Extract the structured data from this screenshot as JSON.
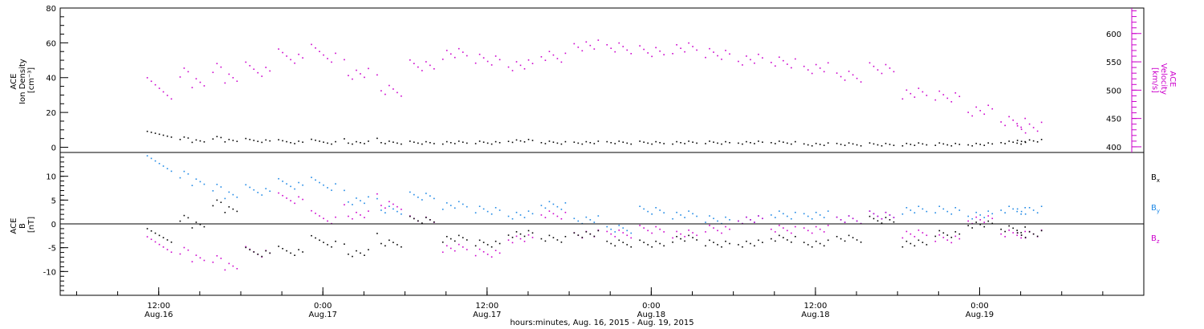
{
  "chart_data": [
    {
      "type": "scatter",
      "panel": "top",
      "ylabel_left": [
        "ACE",
        "Ion Density",
        "[cm⁻³]"
      ],
      "ylabel_right": [
        "ACE",
        "Velocity",
        "[km/s]"
      ],
      "ylim_left": [
        -3,
        80
      ],
      "ylim_right": [
        390,
        645
      ],
      "yticks_left": [
        "0",
        "20",
        "40",
        "60",
        "80"
      ],
      "yticks_right": [
        "400",
        "450",
        "500",
        "550",
        "600"
      ],
      "colors": {
        "density": "#000000",
        "velocity": "#cc00cc"
      },
      "series": [
        {
          "name": "Ion Density",
          "axis": "left",
          "color": "#000000",
          "x": [
            0.0,
            0.1,
            0.2,
            0.3,
            0.4,
            0.5,
            0.6,
            0.7,
            0.8,
            0.9,
            1.0,
            1.1,
            1.2,
            1.3,
            1.4,
            1.5,
            1.6,
            1.7,
            1.8,
            1.9,
            2.0,
            2.1,
            2.2,
            2.3,
            2.4,
            2.5,
            2.6,
            2.65
          ],
          "values": [
            7,
            4,
            4,
            4,
            3,
            3,
            3,
            3,
            3,
            3,
            3,
            4,
            3,
            3,
            3,
            3,
            3,
            3,
            3,
            3,
            2,
            2,
            2,
            2,
            2,
            2,
            3,
            4
          ]
        },
        {
          "name": "Velocity",
          "axis": "right",
          "color": "#cc00cc",
          "x": [
            0.0,
            0.1,
            0.2,
            0.3,
            0.4,
            0.5,
            0.6,
            0.7,
            0.8,
            0.9,
            1.0,
            1.1,
            1.2,
            1.3,
            1.4,
            1.5,
            1.6,
            1.7,
            1.8,
            1.9,
            2.0,
            2.1,
            2.2,
            2.3,
            2.4,
            2.5,
            2.6,
            2.65
          ],
          "values": [
            495,
            515,
            520,
            535,
            555,
            560,
            530,
            500,
            545,
            565,
            555,
            545,
            560,
            580,
            575,
            570,
            575,
            565,
            555,
            550,
            540,
            525,
            540,
            495,
            490,
            465,
            445,
            435
          ]
        }
      ]
    },
    {
      "type": "scatter",
      "panel": "bottom",
      "ylabel_left": [
        "ACE",
        "B",
        "[nT]"
      ],
      "ylim": [
        -15,
        15
      ],
      "yticks": [
        "-10",
        "-5",
        "0",
        "5",
        "10"
      ],
      "legend": [
        {
          "label": "B",
          "sub": "x",
          "color": "#000000"
        },
        {
          "label": "B",
          "sub": "y",
          "color": "#1e88e5"
        },
        {
          "label": "B",
          "sub": "z",
          "color": "#cc00cc"
        }
      ],
      "series": [
        {
          "name": "Bx",
          "color": "#000000",
          "x": [
            0.0,
            0.1,
            0.2,
            0.3,
            0.4,
            0.5,
            0.6,
            0.7,
            0.8,
            0.9,
            1.0,
            1.1,
            1.2,
            1.3,
            1.4,
            1.5,
            1.6,
            1.7,
            1.8,
            1.9,
            2.0,
            2.1,
            2.2,
            2.3,
            2.4,
            2.5,
            2.6,
            2.65
          ],
          "values": [
            -3,
            0,
            3,
            -6,
            -6,
            -4,
            -6,
            -4,
            1,
            -3,
            -4,
            -2,
            -3,
            -2,
            -4,
            -4,
            -3,
            -4,
            -4,
            -3,
            -4,
            -3,
            1,
            -4,
            -2,
            0,
            -1,
            -2
          ]
        },
        {
          "name": "By",
          "color": "#1e88e5",
          "x": [
            0.0,
            0.1,
            0.2,
            0.3,
            0.4,
            0.5,
            0.6,
            0.7,
            0.8,
            0.9,
            1.0,
            1.1,
            1.2,
            1.3,
            1.4,
            1.5,
            1.6,
            1.7,
            1.8,
            1.9,
            2.0,
            2.1,
            2.2,
            2.3,
            2.4,
            2.5,
            2.6,
            2.65
          ],
          "values": [
            12,
            9,
            6,
            7,
            8,
            8,
            5,
            3,
            6,
            4,
            3,
            2,
            4,
            1,
            -1,
            3,
            2,
            1,
            1,
            2,
            2,
            1,
            2,
            3,
            3,
            2,
            3,
            3
          ]
        },
        {
          "name": "Bz",
          "color": "#cc00cc",
          "x": [
            0.0,
            0.1,
            0.2,
            0.3,
            0.4,
            0.5,
            0.6,
            0.7,
            0.8,
            0.9,
            1.0,
            1.1,
            1.2,
            1.3,
            1.4,
            1.5,
            1.6,
            1.7,
            1.8,
            1.9,
            2.0,
            2.1,
            2.2,
            2.3,
            2.4,
            2.5,
            2.6,
            2.65
          ],
          "values": [
            -5,
            -7,
            -9,
            -6,
            5,
            1,
            2,
            4,
            1,
            -5,
            -6,
            -3,
            2,
            -2,
            -2,
            -1,
            -2,
            -1,
            1,
            -1,
            -1,
            1,
            2,
            -2,
            -3,
            1,
            -2,
            -2
          ]
        }
      ]
    }
  ],
  "x_axis": {
    "range": [
      -0.3,
      3.0
    ],
    "tick_times": [
      "12:00",
      "0:00",
      "12:00",
      "0:00",
      "12:00",
      "0:00"
    ],
    "tick_dates": [
      "Aug.16",
      "Aug.17",
      "Aug.17",
      "Aug.18",
      "Aug.18",
      "Aug.19"
    ],
    "tick_values": [
      0.0,
      0.5,
      1.0,
      1.5,
      2.0,
      2.5
    ],
    "xlabel": "hours:minutes, Aug. 16, 2015 - Aug. 19, 2015"
  }
}
